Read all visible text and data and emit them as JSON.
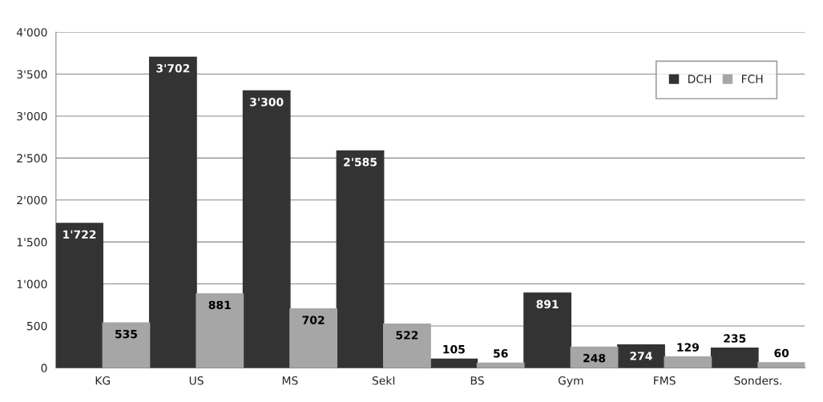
{
  "chart_data": {
    "type": "bar",
    "categories": [
      "KG",
      "US",
      "MS",
      "SekI",
      "BS",
      "Gym",
      "FMS",
      "Sonders."
    ],
    "series": [
      {
        "name": "DCH",
        "color": "#333333",
        "values": [
          1722,
          3702,
          3300,
          2585,
          105,
          891,
          274,
          235
        ],
        "value_labels": [
          "1'722",
          "3'702",
          "3'300",
          "2'585",
          "105",
          "891",
          "274",
          "235"
        ]
      },
      {
        "name": "FCH",
        "color": "#a6a6a6",
        "values": [
          535,
          881,
          702,
          522,
          56,
          248,
          129,
          60
        ],
        "value_labels": [
          "535",
          "881",
          "702",
          "522",
          "56",
          "248",
          "129",
          "60"
        ]
      }
    ],
    "ylim": [
      0,
      4000
    ],
    "yticks": [
      0,
      500,
      {
        "value": 1000,
        "label": "1'000"
      },
      {
        "value": 1500,
        "label": "1'500"
      },
      {
        "value": 2000,
        "label": "2'000"
      },
      {
        "value": 2500,
        "label": "2'500"
      },
      {
        "value": 3000,
        "label": "3'000"
      },
      {
        "value": 3500,
        "label": "3'500"
      },
      {
        "value": 4000,
        "label": "4'000"
      }
    ],
    "grid": "y",
    "legend": "top right"
  }
}
